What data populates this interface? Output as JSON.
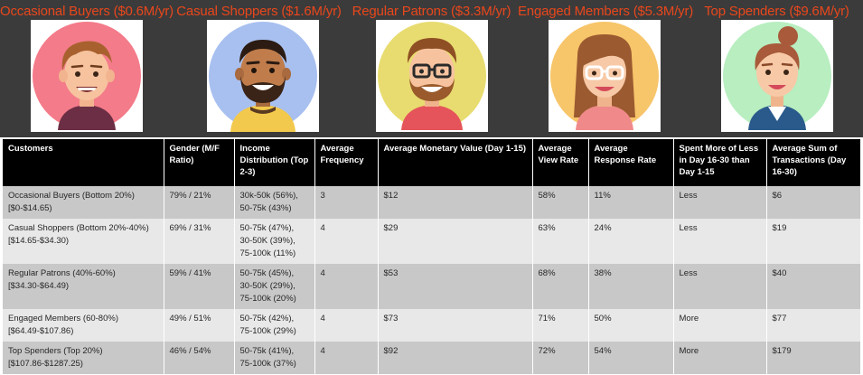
{
  "segments": [
    {
      "title": "Occasional Buyers ($0.6M/yr)",
      "avatar": "young-man-avatar",
      "bg": "#f47b8a"
    },
    {
      "title": "Casual Shoppers ($1.6M/yr)",
      "avatar": "bearded-man-avatar",
      "bg": "#a8c0f0"
    },
    {
      "title": "Regular Patrons ($3.3M/yr)",
      "avatar": "man-with-glasses-avatar",
      "bg": "#e8dc70"
    },
    {
      "title": "Engaged Members ($5.3M/yr)",
      "avatar": "woman-with-glasses-avatar",
      "bg": "#f7c56a"
    },
    {
      "title": "Top Spenders ($9.6M/yr)",
      "avatar": "woman-with-bun-avatar",
      "bg": "#b8eec0"
    }
  ],
  "table": {
    "headers": [
      "Customers",
      "Gender (M/F Ratio)",
      "Income Distribution (Top 2-3)",
      "Average Frequency",
      "Average Monetary Value (Day 1-15)",
      "Average View Rate",
      "Average Response Rate",
      "Spent More of Less in Day 16-30 than Day 1-15",
      "Average Sum of Transactions (Day 16-30)"
    ],
    "rows": [
      [
        "Occasional Buyers (Bottom 20%) [$0-$14.65)",
        "79% / 21%",
        "30k-50k (56%), 50-75k (43%)",
        "3",
        "$12",
        "58%",
        "11%",
        "Less",
        "$6"
      ],
      [
        "Casual Shoppers (Bottom 20%-40%) [$14.65-$34.30)",
        "69% / 31%",
        "50-75k (47%), 30-50K (39%), 75-100k (11%)",
        "4",
        "$29",
        "63%",
        "24%",
        "Less",
        "$19"
      ],
      [
        "Regular Patrons (40%-60%) [$34.30-$64.49)",
        "59% / 41%",
        "50-75k (45%), 30-50K (29%), 75-100k (20%)",
        "4",
        "$53",
        "68%",
        "38%",
        "Less",
        "$40"
      ],
      [
        "Engaged Members (60-80%) [$64.49-$107.86)",
        "49% / 51%",
        "50-75k (42%), 75-100k (29%)",
        "4",
        "$73",
        "71%",
        "50%",
        "More",
        "$77"
      ],
      [
        "Top Spenders (Top 20%) [$107.86-$1287.25)",
        "46% / 54%",
        "50-75k (41%), 75-100k (37%)",
        "4",
        "$92",
        "72%",
        "54%",
        "More",
        "$179"
      ]
    ]
  },
  "colors": {
    "title_accent": "#e8471c",
    "header_band": "#3b3b3b",
    "table_header": "#000000",
    "row_dark": "#c8c8c8",
    "row_light": "#e8e8e8"
  }
}
